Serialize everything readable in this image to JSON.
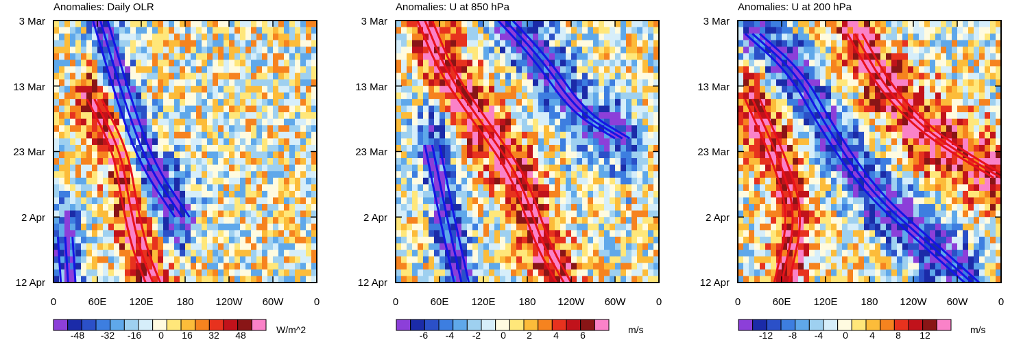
{
  "chart_data": [
    {
      "type": "heatmap",
      "title": "Anomalies: Daily OLR",
      "x_tick_labels": [
        "0",
        "60E",
        "120E",
        "180",
        "120W",
        "60W",
        "0"
      ],
      "y_tick_labels": [
        "3 Mar",
        "13 Mar",
        "23 Mar",
        "2 Apr",
        "12 Apr"
      ],
      "xlim_deg_east": [
        0,
        360
      ],
      "ylim_days_from_3Mar": [
        0,
        40
      ],
      "colorbar": {
        "labels": [
          "-48",
          "-32",
          "-16",
          "0",
          "16",
          "32",
          "48"
        ],
        "values": [
          -48,
          -32,
          -16,
          0,
          16,
          32,
          48
        ],
        "units": "W/m^2"
      },
      "fill_range": [
        -56,
        56
      ],
      "contours": [
        {
          "sign": "negative",
          "color": "blue",
          "points": [
            [
              64,
              0
            ],
            [
              96,
              12
            ],
            [
              128,
              22
            ],
            [
              176,
              30
            ]
          ]
        },
        {
          "sign": "positive",
          "color": "red",
          "points": [
            [
              56,
              12
            ],
            [
              92,
              20
            ],
            [
              104,
              28
            ],
            [
              118,
              35
            ],
            [
              136,
              40
            ]
          ]
        },
        {
          "sign": "negative",
          "color": "blue",
          "points": [
            [
              16,
              33
            ],
            [
              20,
              40
            ]
          ]
        }
      ]
    },
    {
      "type": "heatmap",
      "title": "Anomalies: U at 850 hPa",
      "x_tick_labels": [
        "0",
        "60E",
        "120E",
        "180",
        "120W",
        "60W",
        "0"
      ],
      "y_tick_labels": [
        "3 Mar",
        "13 Mar",
        "23 Mar",
        "2 Apr",
        "12 Apr"
      ],
      "xlim_deg_east": [
        0,
        360
      ],
      "ylim_days_from_3Mar": [
        0,
        40
      ],
      "colorbar": {
        "labels": [
          "-6",
          "-4",
          "-2",
          "0",
          "2",
          "4",
          "6"
        ],
        "values": [
          -6,
          -4,
          -2,
          0,
          2,
          4,
          6
        ],
        "units": "m/s"
      },
      "fill_range": [
        -7,
        7
      ],
      "contours": [
        {
          "sign": "positive",
          "color": "red",
          "points": [
            [
              40,
              0
            ],
            [
              70,
              8
            ],
            [
              120,
              16
            ],
            [
              170,
              24
            ],
            [
              200,
              34
            ],
            [
              230,
              40
            ]
          ]
        },
        {
          "sign": "negative",
          "color": "blue",
          "points": [
            [
              150,
              0
            ],
            [
              200,
              6
            ],
            [
              250,
              14
            ],
            [
              310,
              18
            ]
          ]
        },
        {
          "sign": "negative",
          "color": "blue",
          "points": [
            [
              50,
              19
            ],
            [
              70,
              30
            ],
            [
              90,
              40
            ]
          ]
        }
      ]
    },
    {
      "type": "heatmap",
      "title": "Anomalies: U at 200 hPa",
      "x_tick_labels": [
        "0",
        "60E",
        "120E",
        "180",
        "120W",
        "60W",
        "0"
      ],
      "y_tick_labels": [
        "3 Mar",
        "13 Mar",
        "23 Mar",
        "2 Apr",
        "12 Apr"
      ],
      "xlim_deg_east": [
        0,
        360
      ],
      "ylim_days_from_3Mar": [
        0,
        40
      ],
      "colorbar": {
        "labels": [
          "-12",
          "-8",
          "-4",
          "0",
          "4",
          "8",
          "12"
        ],
        "values": [
          -12,
          -8,
          -4,
          0,
          4,
          8,
          12
        ],
        "units": "m/s"
      },
      "fill_range": [
        -14,
        14
      ],
      "contours": [
        {
          "sign": "negative",
          "color": "blue",
          "points": [
            [
              20,
              2
            ],
            [
              80,
              8
            ],
            [
              120,
              16
            ],
            [
              180,
              26
            ],
            [
              260,
              34
            ],
            [
              320,
              40
            ]
          ]
        },
        {
          "sign": "positive",
          "color": "red",
          "points": [
            [
              160,
              2
            ],
            [
              200,
              10
            ],
            [
              250,
              16
            ],
            [
              300,
              20
            ],
            [
              360,
              24
            ]
          ]
        },
        {
          "sign": "positive",
          "color": "red",
          "points": [
            [
              20,
              12
            ],
            [
              60,
              22
            ],
            [
              80,
              30
            ],
            [
              60,
              40
            ]
          ]
        }
      ]
    }
  ]
}
